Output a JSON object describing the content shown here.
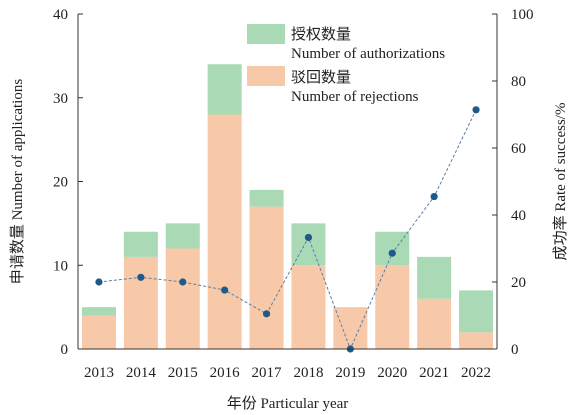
{
  "chart_data": {
    "type": "bar",
    "stacked": true,
    "categories": [
      "2013",
      "2014",
      "2015",
      "2016",
      "2017",
      "2018",
      "2019",
      "2020",
      "2021",
      "2022"
    ],
    "series": [
      {
        "name": "驳回数量 Number of rejections",
        "values": [
          4,
          11,
          12,
          28,
          17,
          10,
          5,
          10,
          6,
          2
        ],
        "color": "#f7c9a8"
      },
      {
        "name": "授权数量 Number of authorizations",
        "values": [
          1,
          3,
          3,
          6,
          2,
          5,
          0,
          4,
          5,
          5
        ],
        "color": "#a9d9b5"
      }
    ],
    "line_series": {
      "values": [
        20,
        21.4,
        20,
        17.6,
        10.5,
        33.3,
        0,
        28.6,
        45.5,
        71.4
      ],
      "axis": "right",
      "color": "#5b7fa6",
      "marker_color": "#1f5a8c"
    },
    "legend": {
      "position": "top-center",
      "items": [
        {
          "cn": "授权数量",
          "en": "Number of authorizations",
          "color": "#a9d9b5"
        },
        {
          "cn": "驳回数量",
          "en": "Number of rejections",
          "color": "#f7c9a8"
        }
      ]
    },
    "xlabel": "年份 Particular year",
    "ylabel": "申请数量 Number of applications",
    "y2label": "成功率 Rate of success/%",
    "ylim": [
      0,
      40
    ],
    "y2lim": [
      0,
      100
    ],
    "yticks": [
      0,
      10,
      20,
      30,
      40
    ],
    "y2ticks": [
      0,
      20,
      40,
      60,
      80,
      100
    ]
  }
}
